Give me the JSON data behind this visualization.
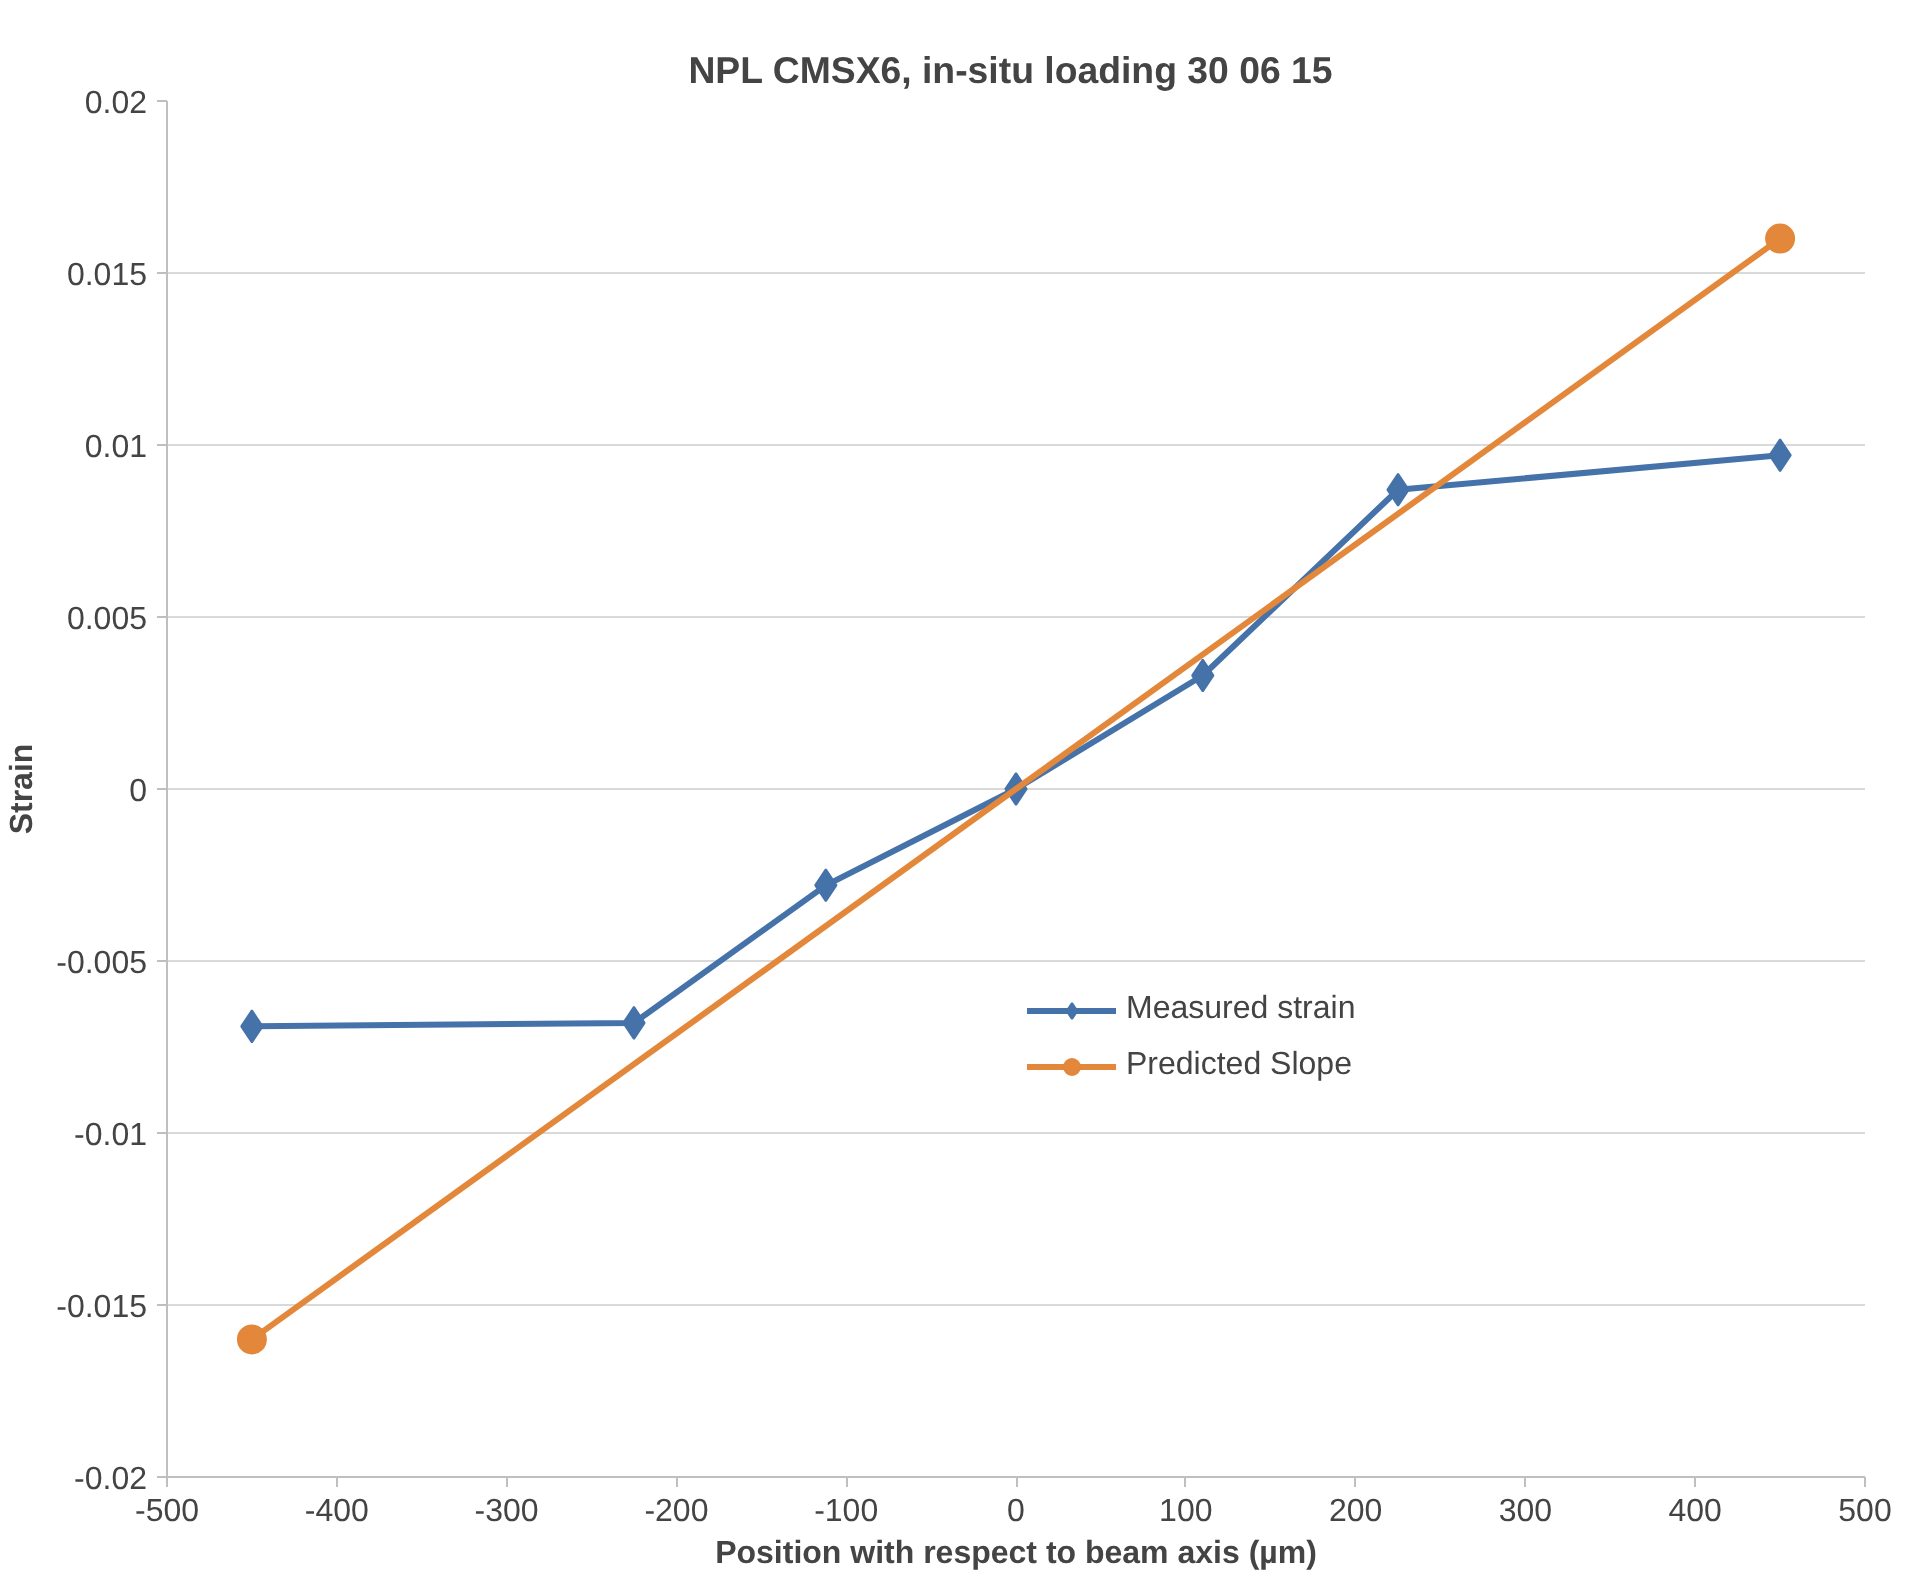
{
  "chart_data": {
    "type": "line",
    "title": "NPL CMSX6, in-situ loading  30 06 15",
    "xlabel": "Position with respect to beam axis (µm)",
    "ylabel": "Strain",
    "series": [
      {
        "name": "Measured strain",
        "color": "#4672aa",
        "marker": "diamond",
        "x": [
          -450,
          -225,
          -112,
          0,
          110,
          225,
          450
        ],
        "values": [
          -0.0069,
          -0.0068,
          -0.0028,
          0,
          0.0033,
          0.0087,
          0.0097
        ]
      },
      {
        "name": "Predicted Slope",
        "color": "#e3873a",
        "marker": "circle",
        "x": [
          -450,
          450
        ],
        "values": [
          -0.016,
          0.016
        ]
      }
    ],
    "xlim": [
      -500,
      500
    ],
    "xticks": [
      -500,
      -400,
      -300,
      -200,
      -100,
      0,
      100,
      200,
      300,
      400,
      500
    ],
    "ylim": [
      -0.02,
      0.02
    ],
    "yticks": [
      -0.02,
      -0.015,
      -0.01,
      -0.005,
      0,
      0.005,
      0.01,
      0.015,
      0.02
    ],
    "grid": "y",
    "legend": "right",
    "line_style": "solid"
  }
}
